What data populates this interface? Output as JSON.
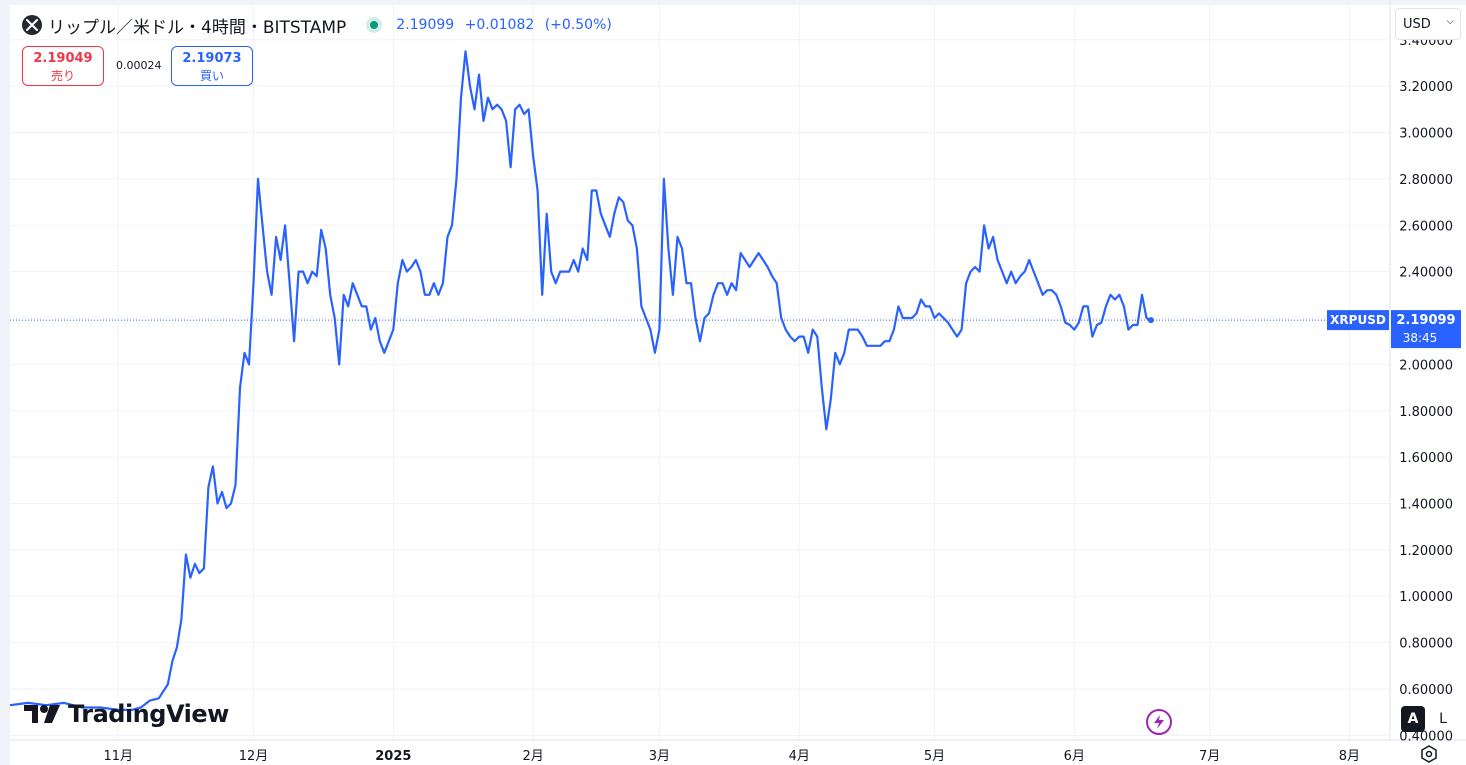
{
  "header": {
    "title": "リップル／米ドル・4時間・BITSTAMP",
    "last": "2.19099",
    "change": "+0.01082",
    "change_pct": "(+0.50%)",
    "sell_price": "2.19049",
    "sell_label": "売り",
    "spread": "0.00024",
    "buy_price": "2.19073",
    "buy_label": "買い",
    "currency": "USD"
  },
  "branding": {
    "logo_text": "TradingView"
  },
  "controls": {
    "auto_label": "A",
    "log_label": "L"
  },
  "colors": {
    "line": "#2962ff",
    "sell": "#f23645",
    "buy": "#2962ff",
    "grid": "#f0f3fa",
    "label_bg": "#2962ff"
  },
  "chart_data": {
    "type": "line",
    "symbol": "XRPUSD",
    "last_value": 2.19099,
    "last_label": "2.19099",
    "countdown": "38:45",
    "ylim": [
      0.38,
      3.55
    ],
    "y_ticks": [
      0.4,
      0.6,
      0.8,
      1.0,
      1.2,
      1.4,
      1.6,
      1.8,
      2.0,
      2.2,
      2.4,
      2.6,
      2.8,
      3.0,
      3.2,
      3.4
    ],
    "y_tick_labels": [
      "0.40000",
      "0.60000",
      "0.80000",
      "1.00000",
      "1.20000",
      "1.40000",
      "1.60000",
      "1.80000",
      "2.00000",
      "2.20000",
      "2.40000",
      "2.60000",
      "2.80000",
      "3.00000",
      "3.20000",
      "3.40000"
    ],
    "x_ticks": [
      {
        "label": "11月",
        "date": "2024-11-01",
        "bold": false
      },
      {
        "label": "12月",
        "date": "2024-12-01",
        "bold": false
      },
      {
        "label": "2025",
        "date": "2025-01-01",
        "bold": true
      },
      {
        "label": "2月",
        "date": "2025-02-01",
        "bold": false
      },
      {
        "label": "3月",
        "date": "2025-03-01",
        "bold": false
      },
      {
        "label": "4月",
        "date": "2025-04-01",
        "bold": false
      },
      {
        "label": "5月",
        "date": "2025-05-01",
        "bold": false
      },
      {
        "label": "6月",
        "date": "2025-06-01",
        "bold": false
      },
      {
        "label": "7月",
        "date": "2025-07-01",
        "bold": false
      },
      {
        "label": "8月",
        "date": "2025-08-01",
        "bold": false
      }
    ],
    "x_start": "2024-10-08",
    "x_end": "2025-08-10",
    "points": [
      [
        "2024-10-08",
        0.53
      ],
      [
        "2024-10-12",
        0.54
      ],
      [
        "2024-10-16",
        0.53
      ],
      [
        "2024-10-20",
        0.54
      ],
      [
        "2024-10-24",
        0.52
      ],
      [
        "2024-10-28",
        0.52
      ],
      [
        "2024-11-01",
        0.51
      ],
      [
        "2024-11-04",
        0.51
      ],
      [
        "2024-11-06",
        0.52
      ],
      [
        "2024-11-08",
        0.55
      ],
      [
        "2024-11-10",
        0.56
      ],
      [
        "2024-11-12",
        0.62
      ],
      [
        "2024-11-13",
        0.72
      ],
      [
        "2024-11-14",
        0.78
      ],
      [
        "2024-11-15",
        0.9
      ],
      [
        "2024-11-16",
        1.18
      ],
      [
        "2024-11-17",
        1.08
      ],
      [
        "2024-11-18",
        1.14
      ],
      [
        "2024-11-19",
        1.1
      ],
      [
        "2024-11-20",
        1.12
      ],
      [
        "2024-11-21",
        1.47
      ],
      [
        "2024-11-22",
        1.56
      ],
      [
        "2024-11-23",
        1.4
      ],
      [
        "2024-11-24",
        1.45
      ],
      [
        "2024-11-25",
        1.38
      ],
      [
        "2024-11-26",
        1.4
      ],
      [
        "2024-11-27",
        1.48
      ],
      [
        "2024-11-28",
        1.9
      ],
      [
        "2024-11-29",
        2.05
      ],
      [
        "2024-11-30",
        2.0
      ],
      [
        "2024-12-01",
        2.35
      ],
      [
        "2024-12-02",
        2.8
      ],
      [
        "2024-12-03",
        2.6
      ],
      [
        "2024-12-04",
        2.4
      ],
      [
        "2024-12-05",
        2.3
      ],
      [
        "2024-12-06",
        2.55
      ],
      [
        "2024-12-07",
        2.45
      ],
      [
        "2024-12-08",
        2.6
      ],
      [
        "2024-12-09",
        2.35
      ],
      [
        "2024-12-10",
        2.1
      ],
      [
        "2024-12-11",
        2.4
      ],
      [
        "2024-12-12",
        2.4
      ],
      [
        "2024-12-13",
        2.35
      ],
      [
        "2024-12-14",
        2.4
      ],
      [
        "2024-12-15",
        2.38
      ],
      [
        "2024-12-16",
        2.58
      ],
      [
        "2024-12-17",
        2.5
      ],
      [
        "2024-12-18",
        2.3
      ],
      [
        "2024-12-19",
        2.2
      ],
      [
        "2024-12-20",
        2.0
      ],
      [
        "2024-12-21",
        2.3
      ],
      [
        "2024-12-22",
        2.25
      ],
      [
        "2024-12-23",
        2.35
      ],
      [
        "2024-12-24",
        2.3
      ],
      [
        "2024-12-25",
        2.25
      ],
      [
        "2024-12-26",
        2.25
      ],
      [
        "2024-12-27",
        2.15
      ],
      [
        "2024-12-28",
        2.2
      ],
      [
        "2024-12-29",
        2.1
      ],
      [
        "2024-12-30",
        2.05
      ],
      [
        "2024-12-31",
        2.1
      ],
      [
        "2025-01-01",
        2.15
      ],
      [
        "2025-01-02",
        2.35
      ],
      [
        "2025-01-03",
        2.45
      ],
      [
        "2025-01-04",
        2.4
      ],
      [
        "2025-01-05",
        2.42
      ],
      [
        "2025-01-06",
        2.45
      ],
      [
        "2025-01-07",
        2.4
      ],
      [
        "2025-01-08",
        2.3
      ],
      [
        "2025-01-09",
        2.3
      ],
      [
        "2025-01-10",
        2.35
      ],
      [
        "2025-01-11",
        2.3
      ],
      [
        "2025-01-12",
        2.35
      ],
      [
        "2025-01-13",
        2.55
      ],
      [
        "2025-01-14",
        2.6
      ],
      [
        "2025-01-15",
        2.8
      ],
      [
        "2025-01-16",
        3.15
      ],
      [
        "2025-01-17",
        3.35
      ],
      [
        "2025-01-18",
        3.2
      ],
      [
        "2025-01-19",
        3.1
      ],
      [
        "2025-01-20",
        3.25
      ],
      [
        "2025-01-21",
        3.05
      ],
      [
        "2025-01-22",
        3.15
      ],
      [
        "2025-01-23",
        3.1
      ],
      [
        "2025-01-24",
        3.12
      ],
      [
        "2025-01-25",
        3.1
      ],
      [
        "2025-01-26",
        3.05
      ],
      [
        "2025-01-27",
        2.85
      ],
      [
        "2025-01-28",
        3.1
      ],
      [
        "2025-01-29",
        3.12
      ],
      [
        "2025-01-30",
        3.08
      ],
      [
        "2025-01-31",
        3.1
      ],
      [
        "2025-02-01",
        2.9
      ],
      [
        "2025-02-02",
        2.75
      ],
      [
        "2025-02-03",
        2.3
      ],
      [
        "2025-02-04",
        2.65
      ],
      [
        "2025-02-05",
        2.4
      ],
      [
        "2025-02-06",
        2.35
      ],
      [
        "2025-02-07",
        2.4
      ],
      [
        "2025-02-08",
        2.4
      ],
      [
        "2025-02-09",
        2.4
      ],
      [
        "2025-02-10",
        2.45
      ],
      [
        "2025-02-11",
        2.4
      ],
      [
        "2025-02-12",
        2.5
      ],
      [
        "2025-02-13",
        2.45
      ],
      [
        "2025-02-14",
        2.75
      ],
      [
        "2025-02-15",
        2.75
      ],
      [
        "2025-02-16",
        2.65
      ],
      [
        "2025-02-17",
        2.6
      ],
      [
        "2025-02-18",
        2.55
      ],
      [
        "2025-02-19",
        2.65
      ],
      [
        "2025-02-20",
        2.72
      ],
      [
        "2025-02-21",
        2.7
      ],
      [
        "2025-02-22",
        2.62
      ],
      [
        "2025-02-23",
        2.6
      ],
      [
        "2025-02-24",
        2.5
      ],
      [
        "2025-02-25",
        2.25
      ],
      [
        "2025-02-26",
        2.2
      ],
      [
        "2025-02-27",
        2.15
      ],
      [
        "2025-02-28",
        2.05
      ],
      [
        "2025-03-01",
        2.15
      ],
      [
        "2025-03-02",
        2.8
      ],
      [
        "2025-03-03",
        2.5
      ],
      [
        "2025-03-04",
        2.3
      ],
      [
        "2025-03-05",
        2.55
      ],
      [
        "2025-03-06",
        2.5
      ],
      [
        "2025-03-07",
        2.35
      ],
      [
        "2025-03-08",
        2.35
      ],
      [
        "2025-03-09",
        2.2
      ],
      [
        "2025-03-10",
        2.1
      ],
      [
        "2025-03-11",
        2.2
      ],
      [
        "2025-03-12",
        2.22
      ],
      [
        "2025-03-13",
        2.3
      ],
      [
        "2025-03-14",
        2.35
      ],
      [
        "2025-03-15",
        2.35
      ],
      [
        "2025-03-16",
        2.3
      ],
      [
        "2025-03-17",
        2.35
      ],
      [
        "2025-03-18",
        2.32
      ],
      [
        "2025-03-19",
        2.48
      ],
      [
        "2025-03-20",
        2.45
      ],
      [
        "2025-03-21",
        2.42
      ],
      [
        "2025-03-22",
        2.45
      ],
      [
        "2025-03-23",
        2.48
      ],
      [
        "2025-03-24",
        2.45
      ],
      [
        "2025-03-25",
        2.42
      ],
      [
        "2025-03-26",
        2.38
      ],
      [
        "2025-03-27",
        2.35
      ],
      [
        "2025-03-28",
        2.2
      ],
      [
        "2025-03-29",
        2.15
      ],
      [
        "2025-03-30",
        2.12
      ],
      [
        "2025-03-31",
        2.1
      ],
      [
        "2025-04-01",
        2.12
      ],
      [
        "2025-04-02",
        2.12
      ],
      [
        "2025-04-03",
        2.05
      ],
      [
        "2025-04-04",
        2.15
      ],
      [
        "2025-04-05",
        2.12
      ],
      [
        "2025-04-06",
        1.9
      ],
      [
        "2025-04-07",
        1.72
      ],
      [
        "2025-04-08",
        1.85
      ],
      [
        "2025-04-09",
        2.05
      ],
      [
        "2025-04-10",
        2.0
      ],
      [
        "2025-04-11",
        2.05
      ],
      [
        "2025-04-12",
        2.15
      ],
      [
        "2025-04-13",
        2.15
      ],
      [
        "2025-04-14",
        2.15
      ],
      [
        "2025-04-15",
        2.12
      ],
      [
        "2025-04-16",
        2.08
      ],
      [
        "2025-04-17",
        2.08
      ],
      [
        "2025-04-18",
        2.08
      ],
      [
        "2025-04-19",
        2.08
      ],
      [
        "2025-04-20",
        2.1
      ],
      [
        "2025-04-21",
        2.1
      ],
      [
        "2025-04-22",
        2.15
      ],
      [
        "2025-04-23",
        2.25
      ],
      [
        "2025-04-24",
        2.2
      ],
      [
        "2025-04-25",
        2.2
      ],
      [
        "2025-04-26",
        2.2
      ],
      [
        "2025-04-27",
        2.22
      ],
      [
        "2025-04-28",
        2.28
      ],
      [
        "2025-04-29",
        2.25
      ],
      [
        "2025-04-30",
        2.25
      ],
      [
        "2025-05-01",
        2.2
      ],
      [
        "2025-05-02",
        2.22
      ],
      [
        "2025-05-03",
        2.2
      ],
      [
        "2025-05-04",
        2.18
      ],
      [
        "2025-05-05",
        2.15
      ],
      [
        "2025-05-06",
        2.12
      ],
      [
        "2025-05-07",
        2.15
      ],
      [
        "2025-05-08",
        2.35
      ],
      [
        "2025-05-09",
        2.4
      ],
      [
        "2025-05-10",
        2.42
      ],
      [
        "2025-05-11",
        2.4
      ],
      [
        "2025-05-12",
        2.6
      ],
      [
        "2025-05-13",
        2.5
      ],
      [
        "2025-05-14",
        2.55
      ],
      [
        "2025-05-15",
        2.45
      ],
      [
        "2025-05-16",
        2.4
      ],
      [
        "2025-05-17",
        2.35
      ],
      [
        "2025-05-18",
        2.4
      ],
      [
        "2025-05-19",
        2.35
      ],
      [
        "2025-05-20",
        2.38
      ],
      [
        "2025-05-21",
        2.4
      ],
      [
        "2025-05-22",
        2.45
      ],
      [
        "2025-05-23",
        2.4
      ],
      [
        "2025-05-24",
        2.35
      ],
      [
        "2025-05-25",
        2.3
      ],
      [
        "2025-05-26",
        2.32
      ],
      [
        "2025-05-27",
        2.32
      ],
      [
        "2025-05-28",
        2.3
      ],
      [
        "2025-05-29",
        2.25
      ],
      [
        "2025-05-30",
        2.18
      ],
      [
        "2025-05-31",
        2.17
      ],
      [
        "2025-06-01",
        2.15
      ],
      [
        "2025-06-02",
        2.18
      ],
      [
        "2025-06-03",
        2.25
      ],
      [
        "2025-06-04",
        2.25
      ],
      [
        "2025-06-05",
        2.12
      ],
      [
        "2025-06-06",
        2.17
      ],
      [
        "2025-06-07",
        2.18
      ],
      [
        "2025-06-08",
        2.25
      ],
      [
        "2025-06-09",
        2.3
      ],
      [
        "2025-06-10",
        2.28
      ],
      [
        "2025-06-11",
        2.3
      ],
      [
        "2025-06-12",
        2.25
      ],
      [
        "2025-06-13",
        2.15
      ],
      [
        "2025-06-14",
        2.17
      ],
      [
        "2025-06-15",
        2.17
      ],
      [
        "2025-06-16",
        2.3
      ],
      [
        "2025-06-17",
        2.2
      ],
      [
        "2025-06-18",
        2.19
      ]
    ]
  }
}
